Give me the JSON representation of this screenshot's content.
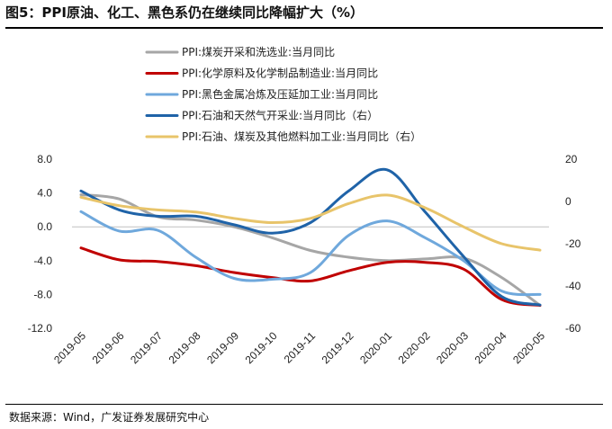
{
  "figure": {
    "title": "图5：PPI原油、化工、黑色系仍在继续同比降幅扩大（%）",
    "source": "数据来源：Wind，广发证券发展研究中心"
  },
  "colors": {
    "s0": "#a6a6a6",
    "s1": "#c00000",
    "s2": "#6fa8dc",
    "s3": "#1f63a8",
    "s4": "#e8c46a"
  },
  "chart_data": {
    "type": "line",
    "categories": [
      "2019-05",
      "2019-06",
      "2019-07",
      "2019-08",
      "2019-09",
      "2019-10",
      "2019-11",
      "2019-12",
      "2020-01",
      "2020-02",
      "2020-03",
      "2020-04",
      "2020-05"
    ],
    "left_axis": {
      "ylim": [
        -12,
        8
      ],
      "ticks": [
        "8.0",
        "4.0",
        "0.0",
        "-4.0",
        "-8.0",
        "-12.0"
      ],
      "tick_values": [
        8,
        4,
        0,
        -4,
        -8,
        -12
      ]
    },
    "right_axis": {
      "ylim": [
        -60,
        20
      ],
      "ticks": [
        "20",
        "0",
        "-20",
        "-40",
        "-60"
      ],
      "tick_values": [
        20,
        0,
        -20,
        -40,
        -60
      ]
    },
    "series": [
      {
        "name": "PPI:煤炭开采和洗选业:当月同比",
        "axis": "left",
        "values": [
          3.8,
          3.3,
          1.2,
          0.8,
          0.0,
          -1.3,
          -2.8,
          -3.6,
          -4.0,
          -3.8,
          -3.7,
          -6.0,
          -9.3
        ]
      },
      {
        "name": "PPI:化学原料及化学制品制造业:当月同比",
        "axis": "left",
        "values": [
          -2.5,
          -3.9,
          -4.1,
          -4.6,
          -5.4,
          -6.0,
          -6.4,
          -5.2,
          -4.2,
          -4.2,
          -5.0,
          -8.6,
          -9.3
        ]
      },
      {
        "name": "PPI:黑色金属冶炼及压延加工业:当月同比",
        "axis": "left",
        "values": [
          1.8,
          -0.5,
          -0.4,
          -3.6,
          -6.1,
          -6.2,
          -5.4,
          -1.0,
          0.7,
          -1.3,
          -4.0,
          -7.6,
          -8.0
        ]
      },
      {
        "name": "PPI:石油和天然气开采业:当月同比（右）",
        "axis": "right",
        "values": [
          5,
          -4,
          -7,
          -7,
          -11,
          -15,
          -10,
          5,
          15,
          -5,
          -26,
          -45,
          -49
        ]
      },
      {
        "name": "PPI:石油、煤炭及其他燃料加工业:当月同比（右）",
        "axis": "right",
        "values": [
          2,
          -2,
          -4,
          -5,
          -8,
          -10,
          -8,
          -1,
          3,
          -3,
          -12,
          -20,
          -23
        ]
      }
    ]
  }
}
